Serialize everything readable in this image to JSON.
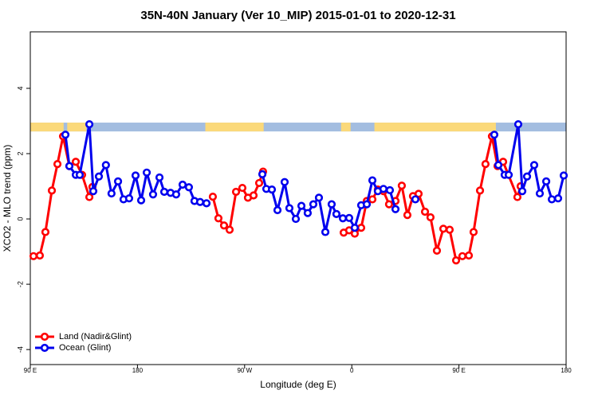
{
  "chart_data": {
    "type": "line",
    "title": "35N-40N January (Ver 10_MIP)   2015-01-01 to 2020-12-31",
    "xlabel": "Longitude (deg E)",
    "ylabel": "XCO2 - MLO trend (ppm)",
    "xlim": [
      90,
      540
    ],
    "ylim": [
      -4.46,
      5.73
    ],
    "xticks": [
      {
        "value": 90,
        "label": "90 E"
      },
      {
        "value": 180,
        "label": "180"
      },
      {
        "value": 270,
        "label": "90 W"
      },
      {
        "value": 360,
        "label": "0"
      },
      {
        "value": 450,
        "label": "90 E"
      },
      {
        "value": 540,
        "label": "180"
      }
    ],
    "yticks": [
      -4,
      -2,
      0,
      2,
      4
    ],
    "legend": "bottom-left",
    "band": {
      "ylim": [
        2.68,
        2.95
      ],
      "ocean_color": "#a3bde0",
      "land_color": "#fbd97a",
      "land": [
        [
          90,
          118
        ],
        [
          121,
          137
        ],
        [
          237,
          286
        ],
        [
          351,
          359
        ],
        [
          379,
          481
        ]
      ]
    },
    "series": [
      {
        "name": "Land (Nadir&Glint)",
        "color": "#ff0000",
        "x": [
          92.7,
          98.0,
          102.7,
          108.1,
          112.8,
          117.5,
          122.8,
          128.2,
          133.5,
          139.6,
          142.2,
          200,
          243.3,
          248.0,
          252.7,
          257.4,
          262.8,
          268.1,
          272.8,
          277.5,
          282.2,
          285.5,
          320,
          353.2,
          357.8,
          362.5,
          367.9,
          372.6,
          377.3,
          381.9,
          386.6,
          391.3,
          396.7,
          402.0,
          406.7,
          411.4,
          416.1,
          421.5,
          426.1,
          431.5,
          436.9,
          442.2,
          447.6,
          452.9,
          458.3,
          462.3,
          467.7,
          472.3,
          477.7,
          482.4,
          487.1,
          499.1,
          501.8
        ],
        "values": [
          -1.14,
          -1.12,
          -0.4,
          0.87,
          1.68,
          2.53,
          1.62,
          1.75,
          1.35,
          0.67,
          0.98,
          null,
          0.68,
          0.02,
          -0.2,
          -0.33,
          0.83,
          0.95,
          0.65,
          0.72,
          1.1,
          1.45,
          null,
          -0.42,
          -0.35,
          -0.45,
          -0.27,
          0.55,
          0.6,
          0.9,
          0.85,
          0.45,
          0.55,
          1.02,
          0.12,
          0.7,
          0.77,
          0.22,
          0.05,
          -0.97,
          -0.3,
          -0.33,
          -1.27,
          -1.14,
          -1.12,
          -0.4,
          0.87,
          1.68,
          2.53,
          1.62,
          1.75,
          0.67,
          1.0
        ]
      },
      {
        "name": "Ocean (Glint)",
        "color": "#0000ee",
        "x": [
          119.5,
          122.8,
          128.2,
          131.5,
          139.6,
          142.9,
          147.6,
          153.5,
          158.2,
          163.7,
          168.3,
          173.0,
          178.4,
          183.1,
          187.8,
          193.1,
          198.5,
          202.5,
          207.8,
          212.5,
          217.9,
          223.2,
          227.9,
          232.6,
          238.0,
          260,
          284.9,
          288.2,
          292.9,
          297.6,
          303.6,
          307.6,
          313.0,
          317.7,
          323.0,
          327.7,
          332.4,
          337.8,
          343.1,
          347.1,
          352.5,
          357.8,
          362.5,
          367.9,
          372.6,
          377.3,
          381.9,
          386.6,
          392.0,
          396.7,
          405,
          413.4,
          450,
          479.7,
          483.1,
          488.4,
          491.8,
          499.8,
          503.2,
          507.2,
          513.2,
          517.9,
          523.3,
          528.0,
          533.3,
          538.0
        ],
        "values": [
          2.58,
          1.62,
          1.35,
          1.35,
          2.9,
          0.85,
          1.3,
          1.65,
          0.78,
          1.15,
          0.6,
          0.63,
          1.33,
          0.57,
          1.42,
          0.75,
          1.27,
          0.83,
          0.8,
          0.75,
          1.05,
          0.97,
          0.55,
          0.52,
          0.48,
          null,
          1.37,
          0.92,
          0.9,
          0.27,
          1.13,
          0.33,
          0.0,
          0.4,
          0.18,
          0.45,
          0.65,
          -0.4,
          0.45,
          0.15,
          0.02,
          0.03,
          -0.27,
          0.42,
          0.45,
          1.18,
          0.85,
          0.92,
          0.88,
          0.3,
          null,
          0.6,
          null,
          2.58,
          1.65,
          1.35,
          1.35,
          2.9,
          0.85,
          1.3,
          1.65,
          0.78,
          1.15,
          0.6,
          0.63,
          1.33
        ]
      }
    ]
  }
}
